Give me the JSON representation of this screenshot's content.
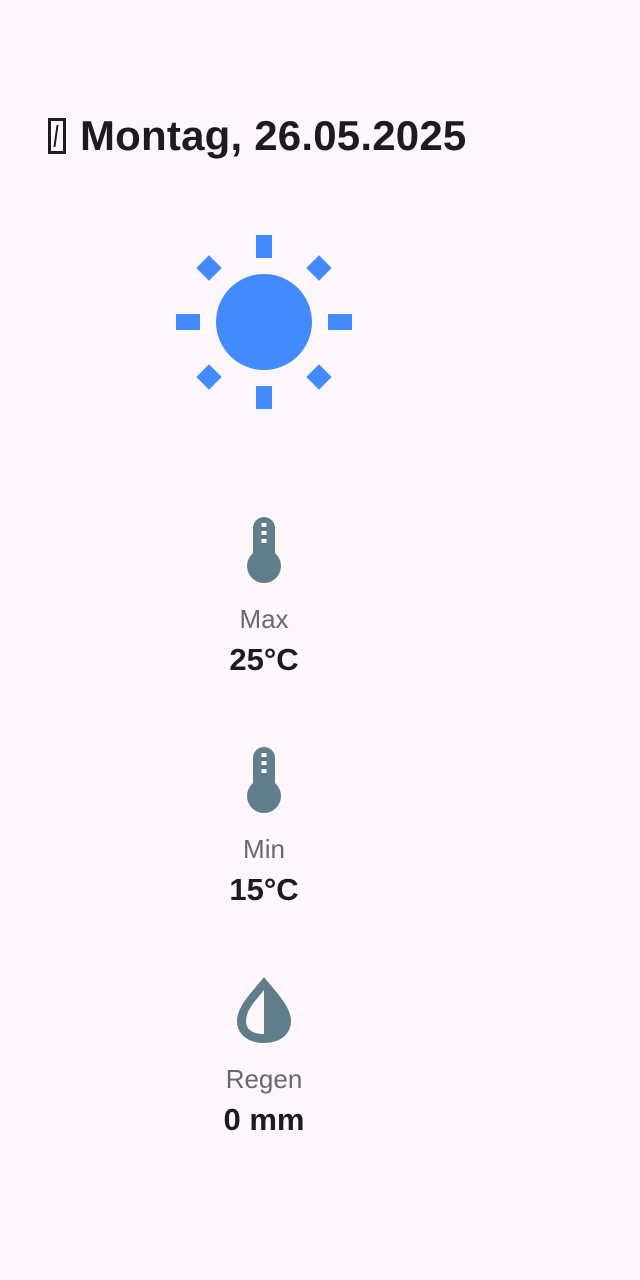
{
  "header": {
    "date_label": "Montag, 26.05.2025"
  },
  "weather": {
    "icon": "sun-icon",
    "accent_color": "#448aff"
  },
  "stats": {
    "max": {
      "label": "Max",
      "value": "25°C",
      "icon": "thermometer-icon"
    },
    "min": {
      "label": "Min",
      "value": "15°C",
      "icon": "thermometer-icon"
    },
    "rain": {
      "label": "Regen",
      "value": "0 mm",
      "icon": "water-drop-icon"
    }
  },
  "colors": {
    "background": "#fdf7fc",
    "icon_gray": "#607d8b",
    "text": "#1d1b20",
    "muted_text": "#6b6670"
  }
}
